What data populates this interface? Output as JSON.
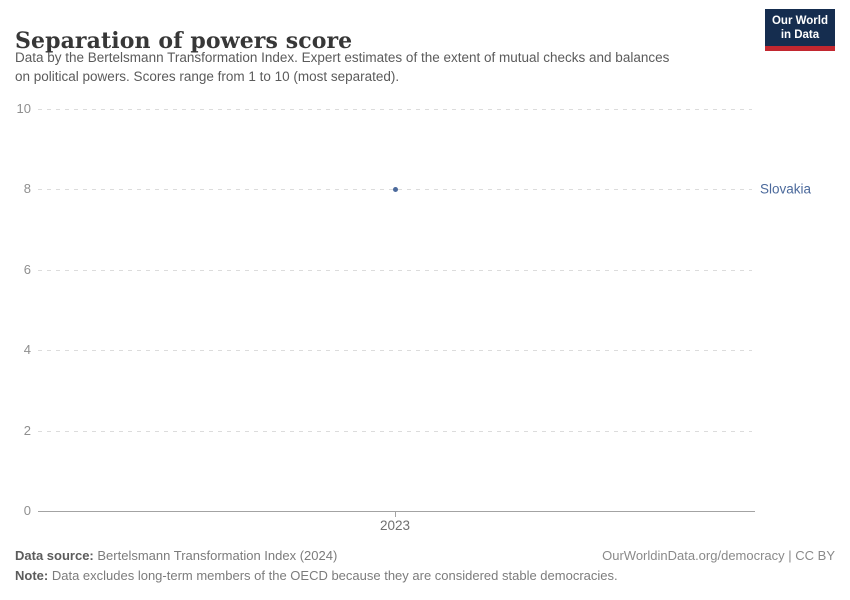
{
  "header": {
    "title": "Separation of powers score",
    "subtitle_line1": "Data by the Bertelsmann Transformation Index. Expert estimates of the extent of mutual checks and balances",
    "subtitle_line2": "on political powers. Scores range from 1 to 10 (most separated).",
    "logo_line1": "Our World",
    "logo_line2": "in Data"
  },
  "chart_data": {
    "type": "scatter",
    "title": "Separation of powers score",
    "subtitle": "Data by the Bertelsmann Transformation Index. Expert estimates of the extent of mutual checks and balances on political powers. Scores range from 1 to 10 (most separated).",
    "x": [
      2023
    ],
    "series": [
      {
        "name": "Slovakia",
        "values": [
          8
        ],
        "color": "#4C6A9C"
      }
    ],
    "xlabel": "",
    "ylabel": "",
    "ylim": [
      0,
      10
    ],
    "yticks": [
      0,
      2,
      4,
      6,
      8,
      10
    ],
    "xticks": [
      2023
    ],
    "grid": "horizontal-dashed",
    "legend_position": "entity-label-right-of-point"
  },
  "footer": {
    "source_label": "Data source:",
    "source_value": "Bertelsmann Transformation Index (2024)",
    "credit": "OurWorldinData.org/democracy | CC BY",
    "note_label": "Note:",
    "note_value": "Data excludes long-term members of the OECD because they are considered stable democracies."
  },
  "colors": {
    "series_blue": "#4C6A9C",
    "logo_navy": "#152d4f",
    "logo_red": "#c2272f",
    "gridline": "#dcdcdc",
    "axis": "#a3a3a3",
    "title_text": "#373737",
    "subtitle_text": "#5b5b5b",
    "tick_text": "#8f8f8f",
    "footer_text": "#7c7c7c"
  }
}
